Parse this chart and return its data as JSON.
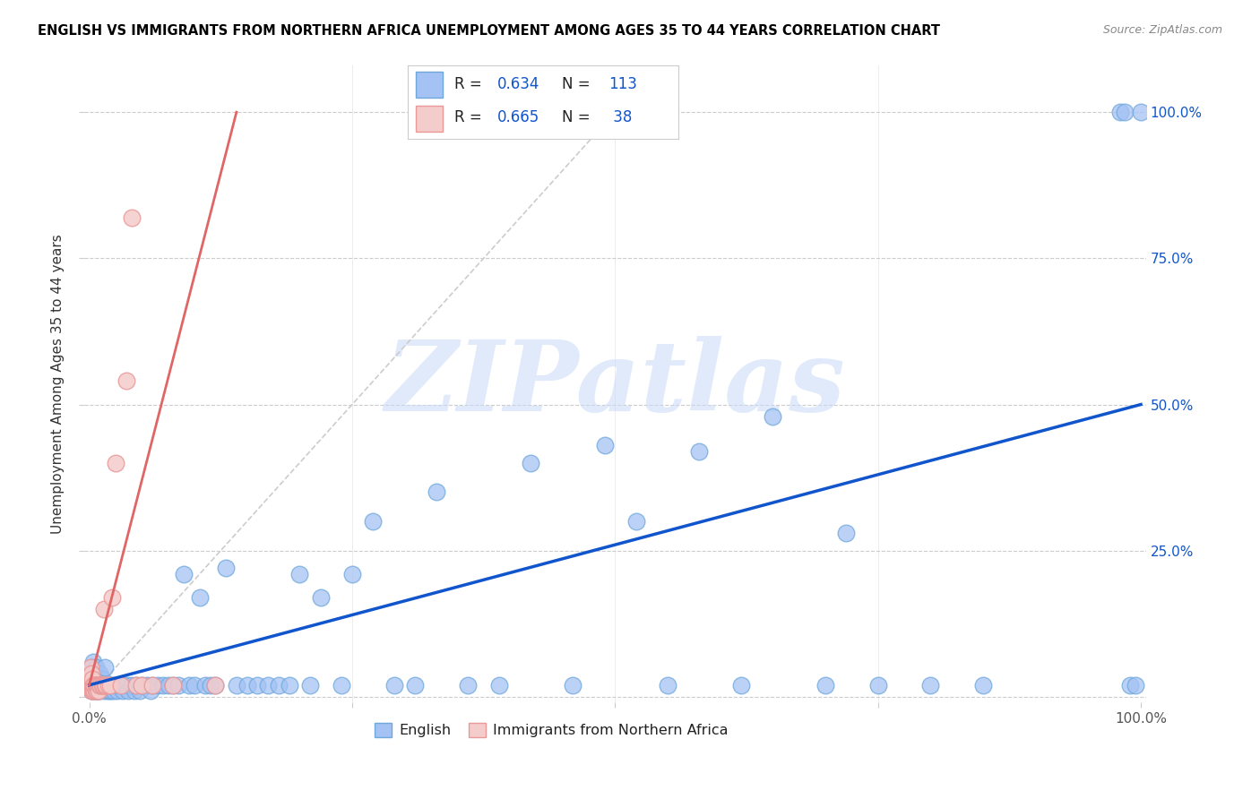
{
  "title": "ENGLISH VS IMMIGRANTS FROM NORTHERN AFRICA UNEMPLOYMENT AMONG AGES 35 TO 44 YEARS CORRELATION CHART",
  "source": "Source: ZipAtlas.com",
  "ylabel": "Unemployment Among Ages 35 to 44 years",
  "watermark": "ZIPatlas",
  "R_english": 0.634,
  "N_english": 113,
  "R_immigrants": 0.665,
  "N_immigrants": 38,
  "blue_scatter_face": "#a4c2f4",
  "blue_scatter_edge": "#6fa8dc",
  "pink_scatter_face": "#f4cccc",
  "pink_scatter_edge": "#ea9999",
  "blue_line_color": "#1155cc",
  "pink_line_color": "#e06666",
  "gray_diag_color": "#cccccc",
  "axis_label_color": "#1155cc",
  "title_color": "#000000",
  "grid_color": "#cccccc",
  "background_color": "#ffffff",
  "english_x": [
    0.001,
    0.001,
    0.001,
    0.002,
    0.002,
    0.002,
    0.002,
    0.003,
    0.003,
    0.003,
    0.003,
    0.004,
    0.004,
    0.004,
    0.005,
    0.005,
    0.005,
    0.006,
    0.006,
    0.006,
    0.007,
    0.007,
    0.008,
    0.008,
    0.009,
    0.009,
    0.01,
    0.01,
    0.011,
    0.012,
    0.013,
    0.014,
    0.015,
    0.016,
    0.017,
    0.018,
    0.019,
    0.02,
    0.021,
    0.022,
    0.023,
    0.025,
    0.027,
    0.028,
    0.03,
    0.032,
    0.035,
    0.037,
    0.04,
    0.043,
    0.045,
    0.048,
    0.05,
    0.055,
    0.058,
    0.06,
    0.065,
    0.07,
    0.075,
    0.08,
    0.085,
    0.09,
    0.095,
    0.1,
    0.105,
    0.11,
    0.115,
    0.12,
    0.13,
    0.14,
    0.15,
    0.16,
    0.17,
    0.18,
    0.19,
    0.2,
    0.21,
    0.22,
    0.24,
    0.25,
    0.27,
    0.29,
    0.31,
    0.33,
    0.36,
    0.39,
    0.42,
    0.46,
    0.49,
    0.52,
    0.55,
    0.58,
    0.62,
    0.65,
    0.7,
    0.72,
    0.75,
    0.8,
    0.85,
    0.98,
    0.985,
    0.99,
    0.995,
    1.0,
    0.002,
    0.003,
    0.004,
    0.005,
    0.006,
    0.008,
    0.01,
    0.012,
    0.015
  ],
  "english_y": [
    0.02,
    0.03,
    0.04,
    0.01,
    0.02,
    0.03,
    0.05,
    0.01,
    0.02,
    0.03,
    0.04,
    0.01,
    0.02,
    0.03,
    0.01,
    0.02,
    0.04,
    0.01,
    0.02,
    0.03,
    0.01,
    0.02,
    0.01,
    0.03,
    0.01,
    0.02,
    0.01,
    0.02,
    0.02,
    0.02,
    0.02,
    0.01,
    0.02,
    0.02,
    0.01,
    0.02,
    0.01,
    0.02,
    0.01,
    0.02,
    0.01,
    0.02,
    0.01,
    0.02,
    0.02,
    0.01,
    0.02,
    0.01,
    0.02,
    0.01,
    0.02,
    0.01,
    0.02,
    0.02,
    0.01,
    0.02,
    0.02,
    0.02,
    0.02,
    0.02,
    0.02,
    0.21,
    0.02,
    0.02,
    0.17,
    0.02,
    0.02,
    0.02,
    0.22,
    0.02,
    0.02,
    0.02,
    0.02,
    0.02,
    0.02,
    0.21,
    0.02,
    0.17,
    0.02,
    0.21,
    0.3,
    0.02,
    0.02,
    0.35,
    0.02,
    0.02,
    0.4,
    0.02,
    0.43,
    0.3,
    0.02,
    0.42,
    0.02,
    0.48,
    0.02,
    0.28,
    0.02,
    0.02,
    0.02,
    1.0,
    1.0,
    0.02,
    0.02,
    1.0,
    0.05,
    0.04,
    0.06,
    0.03,
    0.05,
    0.03,
    0.04,
    0.03,
    0.05
  ],
  "imm_x": [
    0.001,
    0.001,
    0.001,
    0.002,
    0.002,
    0.002,
    0.003,
    0.003,
    0.003,
    0.004,
    0.004,
    0.005,
    0.005,
    0.006,
    0.006,
    0.007,
    0.007,
    0.008,
    0.009,
    0.01,
    0.011,
    0.012,
    0.013,
    0.014,
    0.015,
    0.016,
    0.018,
    0.02,
    0.022,
    0.025,
    0.03,
    0.035,
    0.04,
    0.045,
    0.05,
    0.06,
    0.08,
    0.12
  ],
  "imm_y": [
    0.02,
    0.03,
    0.05,
    0.01,
    0.02,
    0.04,
    0.01,
    0.02,
    0.03,
    0.01,
    0.02,
    0.01,
    0.02,
    0.01,
    0.02,
    0.01,
    0.02,
    0.02,
    0.01,
    0.02,
    0.02,
    0.02,
    0.02,
    0.15,
    0.02,
    0.02,
    0.02,
    0.02,
    0.17,
    0.4,
    0.02,
    0.54,
    0.82,
    0.02,
    0.02,
    0.02,
    0.02,
    0.02
  ],
  "blue_line_x": [
    0.0,
    1.0
  ],
  "blue_line_y": [
    0.02,
    0.5
  ],
  "pink_line_x": [
    0.0,
    0.14
  ],
  "pink_line_y": [
    0.02,
    1.0
  ],
  "diag_line_x": [
    0.0,
    0.5
  ],
  "diag_line_y": [
    0.0,
    1.0
  ],
  "xlim": [
    -0.005,
    1.005
  ],
  "ylim": [
    -0.01,
    1.08
  ]
}
